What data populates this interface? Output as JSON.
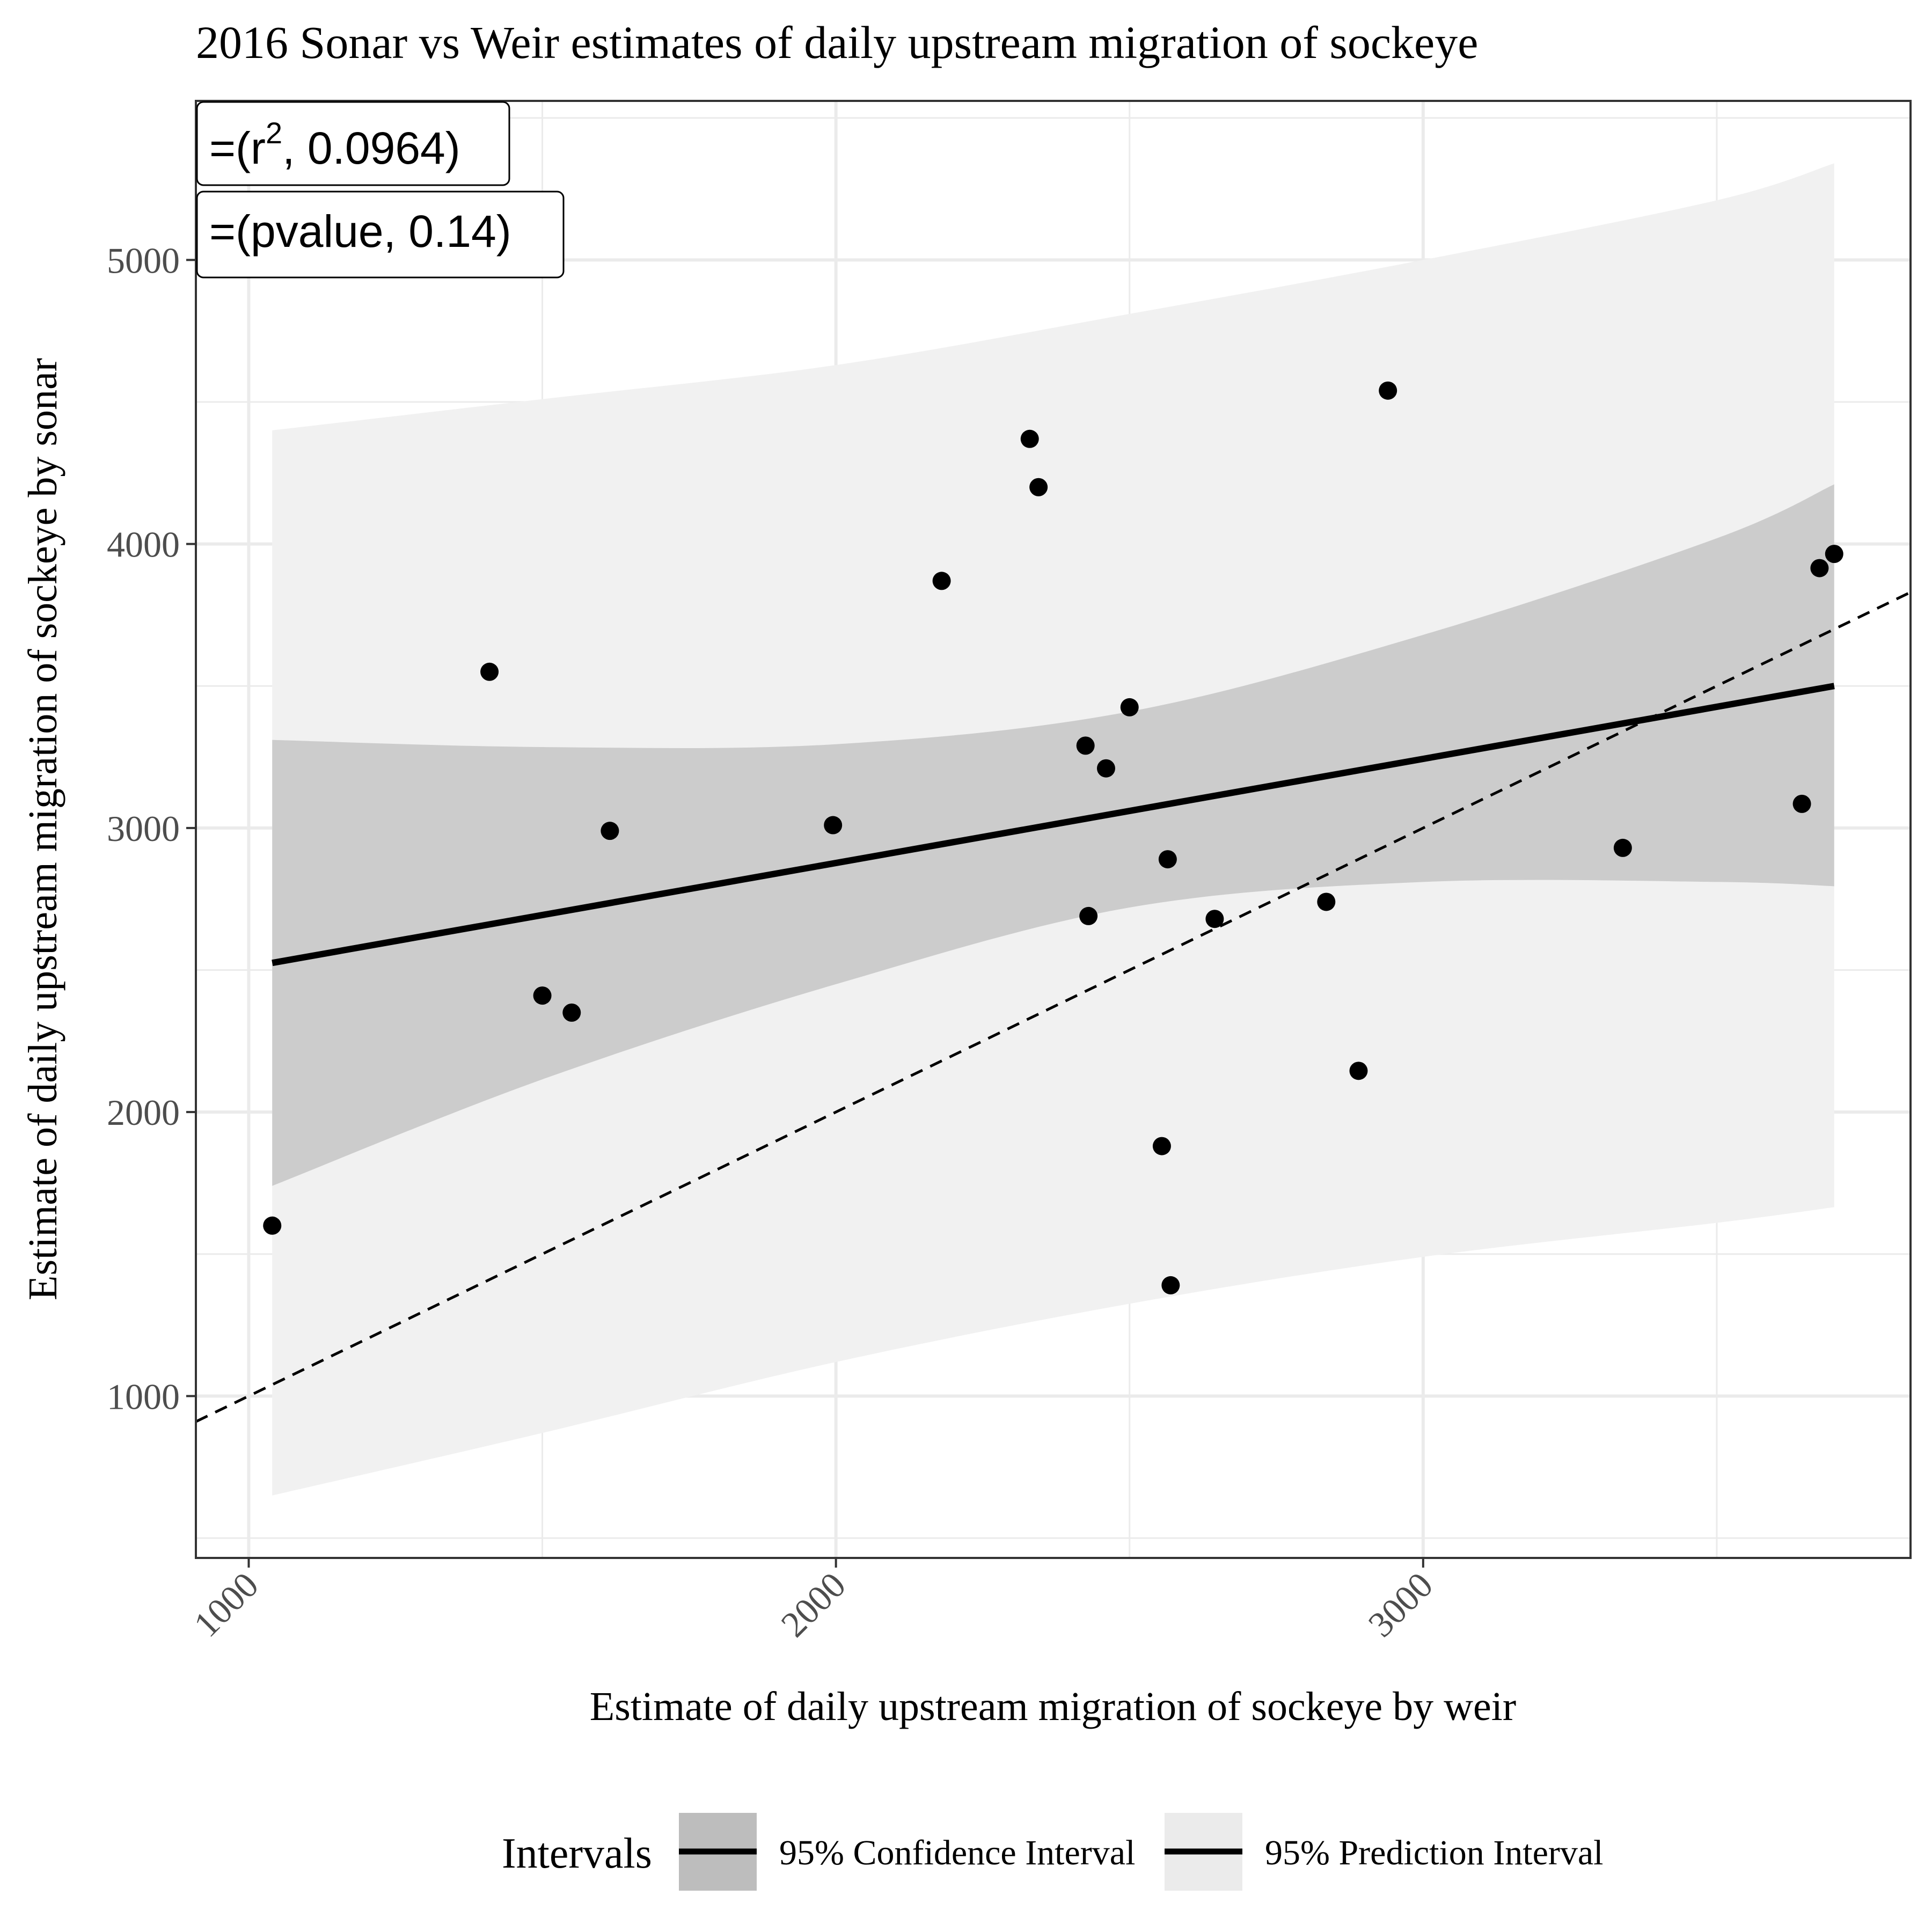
{
  "chart_data": {
    "type": "scatter",
    "title": "2016 Sonar vs Weir estimates of daily upstream migration of sockeye",
    "xlabel": "Estimate of daily upstream migration of  sockeye  by weir",
    "ylabel": "Estimate of daily upstream migration of  sockeye  by sonar",
    "xlim": [
      910,
      3830
    ],
    "ylim": [
      430,
      5560
    ],
    "x_ticks": [
      1000,
      2000,
      3000
    ],
    "y_ticks": [
      1000,
      2000,
      3000,
      4000,
      5000
    ],
    "x_tick_labels": [
      "1000",
      "2000",
      "3000"
    ],
    "y_tick_labels": [
      "1000",
      "2000",
      "3000",
      "4000",
      "5000"
    ],
    "grid": true,
    "points": {
      "x": [
        1040,
        1410,
        1500,
        1550,
        1615,
        1995,
        2180,
        2330,
        2345,
        2425,
        2430,
        2460,
        2500,
        2555,
        2565,
        2570,
        2645,
        2835,
        2890,
        2940,
        3340,
        3645,
        3675,
        3700
      ],
      "y": [
        1600,
        3550,
        2410,
        2350,
        2990,
        3010,
        3870,
        4370,
        4200,
        3290,
        2690,
        3210,
        3425,
        1880,
        2890,
        1390,
        2680,
        2740,
        2145,
        4540,
        2930,
        3085,
        3915,
        3965
      ]
    },
    "fit_line": {
      "x": [
        1040,
        3700
      ],
      "y": [
        2525,
        3500
      ]
    },
    "reference_line": {
      "type": "y = x",
      "style": "dashed",
      "x": [
        910,
        3830
      ],
      "y": [
        910,
        3830
      ]
    },
    "confidence_band": {
      "x": [
        1040,
        1500,
        2000,
        2500,
        3000,
        3500,
        3700
      ],
      "lower": [
        1740,
        2115,
        2450,
        2720,
        2810,
        2810,
        2795
      ],
      "upper": [
        3310,
        3285,
        3295,
        3410,
        3680,
        4020,
        4210
      ]
    },
    "prediction_band": {
      "x": [
        1040,
        1500,
        2000,
        2500,
        3000,
        3500,
        3700
      ],
      "lower": [
        650,
        870,
        1120,
        1325,
        1490,
        1610,
        1665
      ],
      "upper": [
        4400,
        4510,
        4630,
        4810,
        5000,
        5210,
        5340
      ]
    },
    "annotations": [
      {
        "text_prefix": "=(r",
        "superscript": "2",
        "text_suffix": ", 0.0964)"
      },
      {
        "text": "=(pvalue, 0.14)"
      }
    ],
    "legend": {
      "title": "Intervals",
      "position": "bottom",
      "entries": [
        {
          "label": "95% Confidence Interval",
          "fill": "#bdbdbd"
        },
        {
          "label": "95% Prediction Interval",
          "fill": "#ebebeb"
        }
      ]
    },
    "colors": {
      "confidence_fill": "#cccccc",
      "prediction_fill": "#f1f1f1",
      "line": "#000000",
      "point": "#000000",
      "grid": "#ebebeb",
      "text": "#000000",
      "tick_text": "#4d4d4d"
    }
  }
}
